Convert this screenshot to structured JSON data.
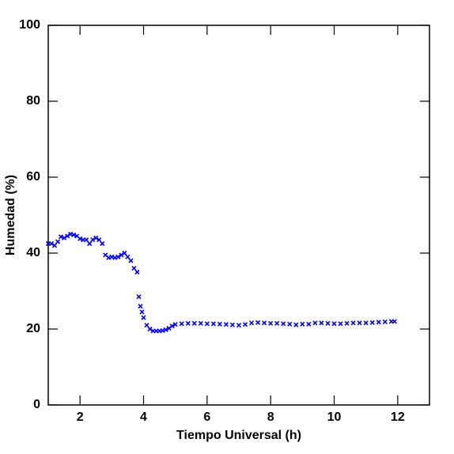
{
  "chart_data": {
    "type": "scatter",
    "xlabel": "Tiempo Universal (h)",
    "ylabel": "Humedad (%)",
    "xlim": [
      1,
      13
    ],
    "ylim": [
      0,
      100
    ],
    "xticks": [
      2,
      4,
      6,
      8,
      10,
      12
    ],
    "yticks": [
      0,
      20,
      40,
      60,
      80,
      100
    ],
    "marker": "x",
    "series": [
      {
        "color": "#0000ff",
        "x": [
          1.0,
          1.1,
          1.2,
          1.3,
          1.4,
          1.5,
          1.6,
          1.7,
          1.8,
          1.9,
          2.0,
          2.1,
          2.2,
          2.3,
          2.4,
          2.5,
          2.6,
          2.7,
          2.8,
          2.9,
          3.0,
          3.1,
          3.2,
          3.3,
          3.4,
          3.5,
          3.6,
          3.7,
          3.8,
          3.85,
          3.9,
          3.95,
          4.0,
          4.1,
          4.2,
          4.3,
          4.4,
          4.5,
          4.6,
          4.7,
          4.8,
          4.9,
          5.0,
          5.2,
          5.4,
          5.6,
          5.8,
          6.0,
          6.2,
          6.4,
          6.6,
          6.8,
          7.0,
          7.2,
          7.4,
          7.6,
          7.8,
          8.0,
          8.2,
          8.4,
          8.6,
          8.8,
          9.0,
          9.2,
          9.4,
          9.6,
          9.8,
          10.0,
          10.2,
          10.4,
          10.6,
          10.8,
          11.0,
          11.2,
          11.4,
          11.6,
          11.8,
          11.9
        ],
        "values": [
          42.5,
          42.5,
          42,
          43,
          44.3,
          44,
          44.5,
          45,
          44.8,
          44.5,
          43.8,
          43.5,
          43.5,
          42.5,
          43.5,
          44,
          43.5,
          42.5,
          39.5,
          38.8,
          39,
          38.8,
          39,
          39.5,
          40,
          39,
          38,
          36,
          35,
          28.5,
          26,
          24.5,
          23,
          21,
          20,
          19.5,
          19.5,
          19.5,
          19.6,
          19.8,
          20.2,
          20.8,
          21.2,
          21.4,
          21.5,
          21.5,
          21.5,
          21.4,
          21.4,
          21.3,
          21.2,
          21.1,
          21,
          21.2,
          21.6,
          21.7,
          21.6,
          21.5,
          21.5,
          21.4,
          21.3,
          21.1,
          21.3,
          21.3,
          21.6,
          21.6,
          21.5,
          21.4,
          21.4,
          21.5,
          21.6,
          21.6,
          21.6,
          21.7,
          21.8,
          21.9,
          22,
          22
        ]
      }
    ]
  }
}
